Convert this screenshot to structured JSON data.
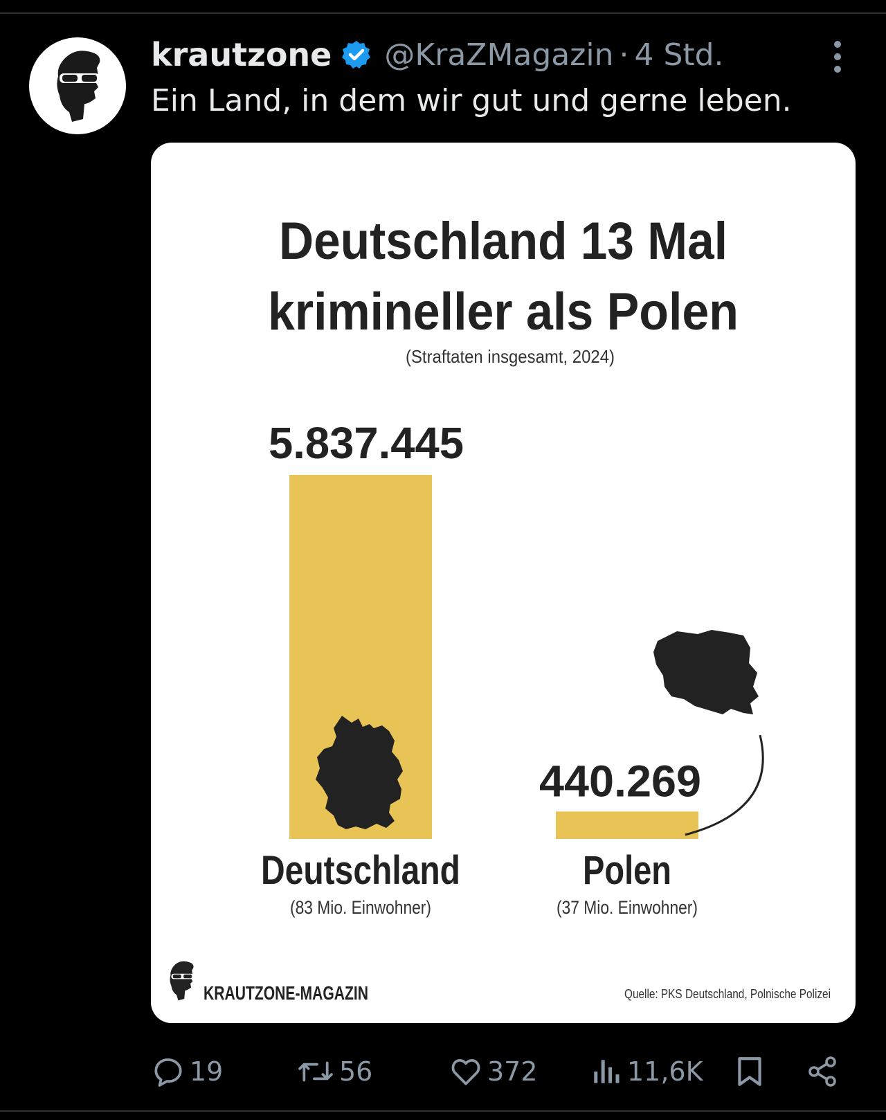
{
  "post": {
    "display_name": "krautzone",
    "handle": "@KraZMagazin",
    "separator": "·",
    "time": "4 Std.",
    "text": "Ein Land, in dem wir gut und gerne leben.",
    "icons": {
      "avatar": "sunglasses-face-logo",
      "verified": "verified-badge-icon",
      "more": "more-options-icon"
    }
  },
  "infographic": {
    "brand": "KRAUTZONE-MAGAZIN",
    "source": "Quelle: PKS Deutschland, Polnische Polizei",
    "map_icons": [
      "germany-map-icon",
      "poland-map-icon"
    ],
    "colors": {
      "bar": "#e8c456",
      "text": "#222222",
      "background": "#ffffff"
    }
  },
  "chart_data": {
    "type": "bar",
    "title": "Deutschland 13 Mal kriminieller als Polen",
    "title_lines": [
      "Deutschland 13 Mal",
      "krimineller als Polen"
    ],
    "subtitle": "(Straftaten insgesamt, 2024)",
    "categories": [
      "Deutschland",
      "Polen"
    ],
    "category_notes": [
      "(83 Mio. Einwohner)",
      "(37 Mio. Einwohner)"
    ],
    "values": [
      5837445,
      440269
    ],
    "value_labels": [
      "5.837.445",
      "440.269"
    ],
    "ylim": [
      0,
      5837445
    ],
    "grid": false,
    "legend": "none"
  },
  "actions": {
    "reply_count": "19",
    "retweet_count": "56",
    "like_count": "372",
    "views_count": "11,6K",
    "icons": [
      "reply-icon",
      "retweet-icon",
      "like-icon",
      "views-icon",
      "bookmark-icon",
      "share-icon"
    ]
  },
  "theme": {
    "background": "#000000",
    "text": "#e7e9ea",
    "muted": "#8b98a5",
    "verified": "#1d9bf0",
    "divider": "#2f3336"
  }
}
